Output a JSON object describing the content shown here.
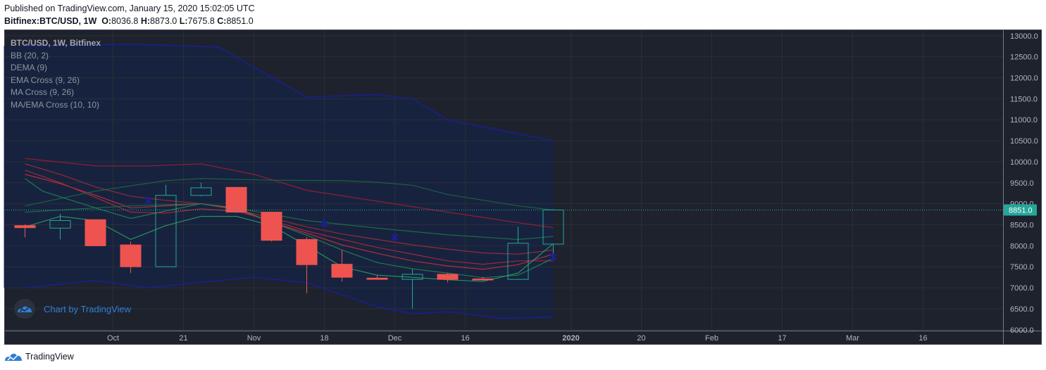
{
  "header": {
    "published": "Published on TradingView.com, January 15, 2020 15:02:05 UTC",
    "symbol": "Bitfinex:BTC/USD, 1W",
    "o_label": "O:",
    "o_value": "8036.8",
    "h_label": "H:",
    "h_value": "8873.0",
    "l_label": "L:",
    "l_value": "7675.8",
    "c_label": "C:",
    "c_value": "8851.0"
  },
  "legend": [
    "BTC/USD, 1W, Bitfinex",
    "BB (20, 2)",
    "DEMA (9)",
    "EMA Cross (9, 26)",
    "MA Cross (9, 26)",
    "MA/EMA Cross (10, 10)"
  ],
  "watermark": {
    "text": "Chart by TradingView",
    "icon": "tradingview-logo-icon"
  },
  "footer": {
    "brand": "TradingView",
    "icon": "tradingview-logo-icon"
  },
  "chart_data": {
    "type": "candlestick",
    "y_ticks": [
      6000,
      6500,
      7000,
      7500,
      8000,
      8500,
      9000,
      9500,
      10000,
      10500,
      11000,
      11500,
      12000,
      12500,
      13000
    ],
    "ylim": [
      5980,
      13130
    ],
    "x_tick_labels": [
      {
        "label": "Oct",
        "week": 2.5
      },
      {
        "label": "21",
        "week": 4.5
      },
      {
        "label": "Nov",
        "week": 6.5
      },
      {
        "label": "18",
        "week": 8.5
      },
      {
        "label": "Dec",
        "week": 10.5
      },
      {
        "label": "16",
        "week": 12.5
      },
      {
        "label": "2020",
        "week": 15.5
      },
      {
        "label": "20",
        "week": 17.5
      },
      {
        "label": "Feb",
        "week": 19.5
      },
      {
        "label": "17",
        "week": 21.5
      },
      {
        "label": "Mar",
        "week": 23.5
      },
      {
        "label": "16",
        "week": 25.5
      }
    ],
    "last_price": 8851.0,
    "last_price_label": "8851.0",
    "candles": [
      {
        "week": 0,
        "o": 8480,
        "h": 8510,
        "l": 8200,
        "c": 8430
      },
      {
        "week": 1,
        "o": 8420,
        "h": 8760,
        "l": 8150,
        "c": 8600
      },
      {
        "week": 2,
        "o": 8620,
        "h": 8620,
        "l": 8000,
        "c": 8000
      },
      {
        "week": 3,
        "o": 8020,
        "h": 8100,
        "l": 7350,
        "c": 7500
      },
      {
        "week": 4,
        "o": 7500,
        "h": 9450,
        "l": 7500,
        "c": 9200
      },
      {
        "week": 5,
        "o": 9200,
        "h": 9500,
        "l": 9180,
        "c": 9380
      },
      {
        "week": 6,
        "o": 9390,
        "h": 9400,
        "l": 8780,
        "c": 8800
      },
      {
        "week": 7,
        "o": 8800,
        "h": 8800,
        "l": 8100,
        "c": 8130
      },
      {
        "week": 8,
        "o": 8150,
        "h": 8200,
        "l": 6870,
        "c": 7550
      },
      {
        "week": 9,
        "o": 7560,
        "h": 7900,
        "l": 7150,
        "c": 7250
      },
      {
        "week": 10,
        "o": 7230,
        "h": 7300,
        "l": 7200,
        "c": 7200
      },
      {
        "week": 11,
        "o": 7200,
        "h": 7450,
        "l": 6500,
        "c": 7320
      },
      {
        "week": 12,
        "o": 7320,
        "h": 7350,
        "l": 7130,
        "c": 7200
      },
      {
        "week": 13,
        "o": 7210,
        "h": 7260,
        "l": 7170,
        "c": 7200
      },
      {
        "week": 14,
        "o": 7200,
        "h": 8450,
        "l": 7200,
        "c": 8060
      },
      {
        "week": 15,
        "o": 8040,
        "h": 8873,
        "l": 7676,
        "c": 8851
      }
    ],
    "indicators": [
      {
        "name": "BB upper",
        "color": "#1c1e96",
        "width": 1.6,
        "values": [
          [
            0,
            12760
          ],
          [
            3,
            12800
          ],
          [
            5.5,
            12730
          ],
          [
            6.5,
            12250
          ],
          [
            8,
            11540
          ],
          [
            10,
            11600
          ],
          [
            11,
            11500
          ],
          [
            12,
            11000
          ],
          [
            15,
            10500
          ]
        ]
      },
      {
        "name": "BB lower",
        "color": "#1c1e96",
        "width": 1.6,
        "values": [
          [
            0,
            7000
          ],
          [
            2,
            7170
          ],
          [
            3.5,
            7000
          ],
          [
            5,
            7130
          ],
          [
            6.5,
            7250
          ],
          [
            8,
            7120
          ],
          [
            10,
            6550
          ],
          [
            11,
            6380
          ],
          [
            12,
            6430
          ],
          [
            13.5,
            6270
          ],
          [
            15,
            6300
          ]
        ]
      },
      {
        "name": "MA slow",
        "color": "#ad1b32",
        "width": 1.1,
        "values": [
          [
            0,
            10080
          ],
          [
            2,
            9900
          ],
          [
            3.5,
            9900
          ],
          [
            5,
            9950
          ],
          [
            6.5,
            9700
          ],
          [
            8,
            9320
          ],
          [
            10,
            9060
          ],
          [
            12,
            8800
          ],
          [
            14,
            8550
          ],
          [
            15,
            8430
          ]
        ]
      },
      {
        "name": "EMA slow",
        "color": "#b22a3a",
        "width": 1.1,
        "values": [
          [
            0,
            9950
          ],
          [
            1,
            9700
          ],
          [
            2,
            9400
          ],
          [
            3,
            9180
          ],
          [
            4,
            9080
          ],
          [
            5,
            9000
          ],
          [
            6,
            8860
          ],
          [
            7,
            8660
          ],
          [
            8,
            8450
          ],
          [
            9,
            8280
          ],
          [
            10,
            8150
          ],
          [
            11,
            8020
          ],
          [
            12,
            7920
          ],
          [
            13,
            7830
          ],
          [
            14,
            7800
          ],
          [
            15,
            7900
          ]
        ]
      },
      {
        "name": "EMA fast",
        "color": "#d4303f",
        "width": 1.1,
        "values": [
          [
            0,
            9700
          ],
          [
            1,
            9480
          ],
          [
            2,
            9200
          ],
          [
            3,
            8900
          ],
          [
            4,
            8950
          ],
          [
            5,
            9000
          ],
          [
            6,
            8870
          ],
          [
            7,
            8560
          ],
          [
            8,
            8300
          ],
          [
            9,
            8020
          ],
          [
            10,
            7820
          ],
          [
            11,
            7640
          ],
          [
            12,
            7520
          ],
          [
            13,
            7440
          ],
          [
            14,
            7550
          ],
          [
            15,
            7800
          ]
        ]
      },
      {
        "name": "MA fast",
        "color": "#c0283a",
        "width": 1.1,
        "values": [
          [
            0,
            9800
          ],
          [
            1,
            9500
          ],
          [
            2,
            9150
          ],
          [
            3,
            8800
          ],
          [
            4,
            8780
          ],
          [
            5,
            8880
          ],
          [
            6,
            8820
          ],
          [
            7,
            8600
          ],
          [
            8,
            8350
          ],
          [
            9,
            8150
          ],
          [
            10,
            7960
          ],
          [
            11,
            7800
          ],
          [
            12,
            7640
          ],
          [
            13,
            7560
          ],
          [
            14,
            7640
          ],
          [
            15,
            7640
          ]
        ]
      },
      {
        "name": "MA cross slow",
        "color": "#1b6f45",
        "width": 1.1,
        "values": [
          [
            0,
            8950
          ],
          [
            2,
            9300
          ],
          [
            4,
            9550
          ],
          [
            5,
            9600
          ],
          [
            7,
            9560
          ],
          [
            9,
            9550
          ],
          [
            10,
            9510
          ],
          [
            11,
            9440
          ],
          [
            12,
            9220
          ],
          [
            14,
            8950
          ],
          [
            15,
            8850
          ]
        ]
      },
      {
        "name": "EMA cross slow",
        "color": "#1d7a4b",
        "width": 1.1,
        "values": [
          [
            0,
            8800
          ],
          [
            2,
            8900
          ],
          [
            3,
            8950
          ],
          [
            5,
            9000
          ],
          [
            6,
            8900
          ],
          [
            8,
            8600
          ],
          [
            10,
            8420
          ],
          [
            12,
            8260
          ],
          [
            14,
            8150
          ],
          [
            15,
            8220
          ]
        ]
      },
      {
        "name": "MA cross fast",
        "color": "#238a55",
        "width": 1.1,
        "values": [
          [
            0,
            9600
          ],
          [
            0.5,
            9300
          ],
          [
            2,
            8900
          ],
          [
            3,
            8650
          ],
          [
            4,
            8830
          ],
          [
            5,
            9000
          ],
          [
            6,
            8900
          ],
          [
            7,
            8560
          ],
          [
            8,
            8250
          ],
          [
            9,
            7900
          ],
          [
            10,
            7600
          ],
          [
            11,
            7450
          ],
          [
            12,
            7350
          ],
          [
            13,
            7240
          ],
          [
            14,
            7300
          ],
          [
            15,
            7700
          ]
        ]
      },
      {
        "name": "DEMA",
        "color": "#2aa565",
        "width": 1.1,
        "values": [
          [
            0,
            8450
          ],
          [
            1,
            8700
          ],
          [
            2,
            8600
          ],
          [
            3,
            8150
          ],
          [
            4,
            8480
          ],
          [
            5,
            8700
          ],
          [
            6,
            8700
          ],
          [
            7,
            8480
          ],
          [
            8,
            8000
          ],
          [
            9,
            7500
          ],
          [
            10,
            7300
          ],
          [
            11,
            7250
          ],
          [
            12,
            7190
          ],
          [
            13,
            7150
          ],
          [
            14,
            7350
          ],
          [
            15,
            8050
          ]
        ]
      }
    ],
    "markers": [
      {
        "week": 3.5,
        "value": 9080,
        "color": "#1c1e96"
      },
      {
        "week": 8.5,
        "value": 8530,
        "color": "#1c1e96"
      },
      {
        "week": 10.5,
        "value": 8200,
        "color": "#1c1e96"
      },
      {
        "week": 15,
        "value": 7730,
        "color": "#1c1e96"
      }
    ],
    "colors": {
      "up": "#26a69a",
      "down": "#ef5350",
      "price_line": "#26a69a",
      "bg": "#1e222d",
      "shade": "#162340",
      "grid": "#2a2e39",
      "text": "#b2b5be"
    }
  }
}
